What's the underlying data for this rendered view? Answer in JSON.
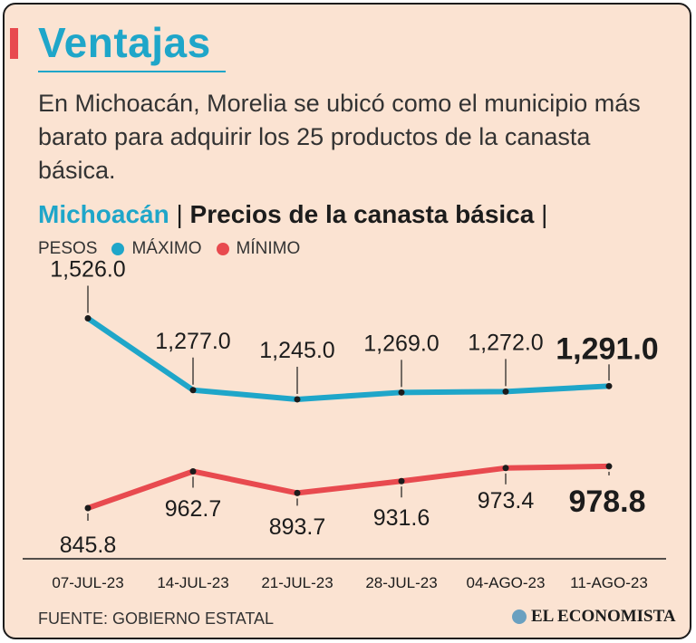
{
  "header": {
    "title": "Ventajas",
    "intro": "En Michoacán, Morelia se ubicó como el municipio más barato para adquirir los 25 productos de la canasta básica."
  },
  "subtitle": {
    "region": "Michoacán",
    "separator": "|",
    "topic": "Precios de la canasta básica",
    "trailing": "|"
  },
  "legend": {
    "unit": "PESOS",
    "items": [
      {
        "label": "MÁXIMO",
        "color": "#1fa6c9"
      },
      {
        "label": "MÍNIMO",
        "color": "#e84a4f"
      }
    ]
  },
  "chart_data": {
    "type": "line",
    "categories": [
      "07-JUL-23",
      "14-JUL-23",
      "21-JUL-23",
      "28-JUL-23",
      "04-AGO-23",
      "11-AGO-23"
    ],
    "series": [
      {
        "name": "MÁXIMO",
        "color": "#1fa6c9",
        "values": [
          1526.0,
          1277.0,
          1245.0,
          1269.0,
          1272.0,
          1291.0
        ],
        "labels": [
          "1,526.0",
          "1,277.0",
          "1,245.0",
          "1,269.0",
          "1,272.0",
          "1,291.0"
        ]
      },
      {
        "name": "MÍNIMO",
        "color": "#e84a4f",
        "values": [
          845.8,
          962.7,
          893.7,
          931.6,
          973.4,
          978.8
        ],
        "labels": [
          "845.8",
          "962.7",
          "893.7",
          "931.6",
          "973.4",
          "978.8"
        ]
      }
    ],
    "ylabel": "PESOS",
    "grid": false,
    "legend_position": "top-left"
  },
  "footer": {
    "source": "FUENTE: GOBIERNO ESTATAL",
    "brand": "EL ECONOMISTA"
  }
}
